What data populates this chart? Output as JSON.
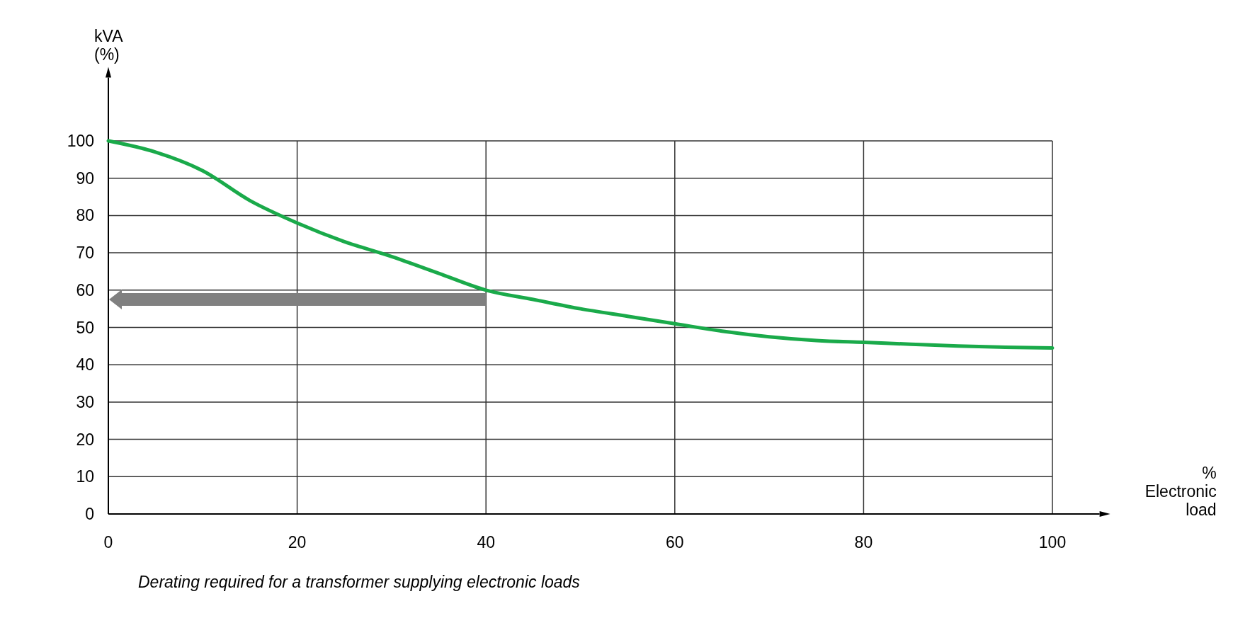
{
  "chart_data": {
    "type": "line",
    "ylabel": "kVA\n(%)",
    "xlabel": "%\nElectronic\nload",
    "annotations": [
      "Derating required for a transformer supplying electronic loads"
    ],
    "x": [
      0,
      5,
      10,
      15,
      20,
      25,
      30,
      35,
      40,
      45,
      50,
      55,
      60,
      65,
      70,
      75,
      80,
      85,
      90,
      95,
      100
    ],
    "series": [
      {
        "color": "#1aaa4a",
        "values": [
          100,
          97,
          92,
          84,
          78,
          73,
          69,
          64.5,
          60,
          57.5,
          55,
          53,
          51,
          49,
          47.5,
          46.5,
          46,
          45.5,
          45,
          44.7,
          44.5
        ]
      }
    ],
    "xlim": [
      0,
      105
    ],
    "ylim": [
      0,
      117
    ],
    "xticks": [
      0,
      20,
      40,
      60,
      80,
      100
    ],
    "yticks": [
      0,
      10,
      20,
      30,
      40,
      50,
      60,
      70,
      80,
      90,
      100
    ],
    "grid": true,
    "marker": "none",
    "line_style": "solid"
  }
}
